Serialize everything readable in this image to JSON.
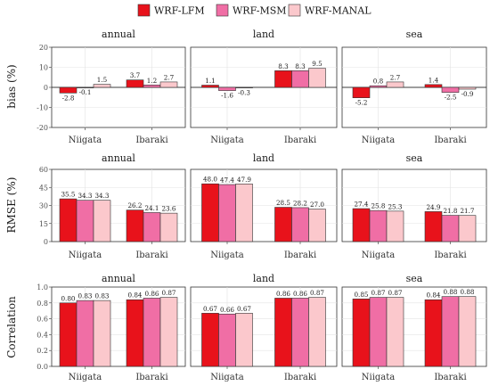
{
  "legend": [
    {
      "name": "WRF-LFM",
      "color": "#e8121b"
    },
    {
      "name": "WRF-MSM",
      "color": "#f06ea5"
    },
    {
      "name": "WRF-MANAL",
      "color": "#fbc8cc"
    }
  ],
  "chart_data": {
    "type": "bar",
    "categories": [
      "Niigata",
      "Ibaraki"
    ],
    "facets": [
      "annual",
      "land",
      "sea"
    ],
    "rows": [
      {
        "ylabel": "bias (%)",
        "ylim": [
          -20,
          20
        ],
        "yticks": [
          -20,
          -10,
          0,
          10,
          20
        ],
        "label_format": 1,
        "values": {
          "annual": [
            [
              -2.8,
              -0.1,
              1.5
            ],
            [
              3.7,
              1.2,
              2.7
            ]
          ],
          "land": [
            [
              1.1,
              -1.6,
              -0.3
            ],
            [
              8.3,
              8.3,
              9.5
            ]
          ],
          "sea": [
            [
              -5.2,
              0.8,
              2.7
            ],
            [
              1.4,
              -2.5,
              -0.9
            ]
          ]
        }
      },
      {
        "ylabel": "RMSE (%)",
        "ylim": [
          0,
          60
        ],
        "yticks": [
          0,
          15,
          30,
          45,
          60
        ],
        "label_format": 1,
        "values": {
          "annual": [
            [
              35.5,
              34.3,
              34.3
            ],
            [
              26.2,
              24.1,
              23.6
            ]
          ],
          "land": [
            [
              48.0,
              47.4,
              47.9
            ],
            [
              28.5,
              28.2,
              27.0
            ]
          ],
          "sea": [
            [
              27.4,
              25.8,
              25.3
            ],
            [
              24.9,
              21.8,
              21.7
            ]
          ]
        }
      },
      {
        "ylabel": "Correlation",
        "ylim": [
          0,
          1
        ],
        "yticks": [
          0.0,
          0.2,
          0.4,
          0.6,
          0.8,
          1.0
        ],
        "label_format": 2,
        "values": {
          "annual": [
            [
              0.8,
              0.83,
              0.83
            ],
            [
              0.84,
              0.86,
              0.87
            ]
          ],
          "land": [
            [
              0.67,
              0.66,
              0.67
            ],
            [
              0.86,
              0.86,
              0.87
            ]
          ],
          "sea": [
            [
              0.85,
              0.87,
              0.87
            ],
            [
              0.84,
              0.88,
              0.88
            ]
          ]
        }
      }
    ],
    "grid": true,
    "legend_position": "top"
  }
}
